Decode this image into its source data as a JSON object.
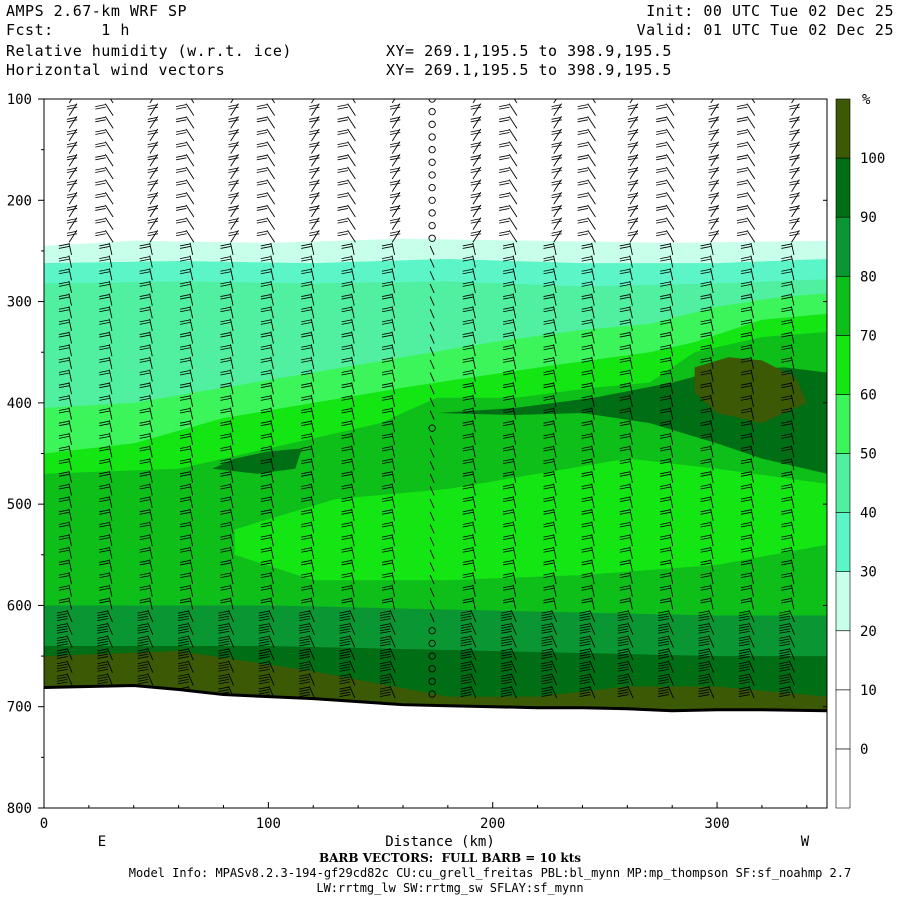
{
  "header": {
    "left_line1": "AMPS 2.67-km WRF SP",
    "left_line2": "Fcst:     1 h",
    "left_line3": "Relative humidity (w.r.t. ice)",
    "left_line4": "Horizontal wind vectors",
    "mid_line3": "XY= 269.1,195.5 to 398.9,195.5",
    "mid_line4": "XY= 269.1,195.5 to 398.9,195.5",
    "right_line1": "Init: 00 UTC Tue 02 Dec 25",
    "right_line2": "Valid: 01 UTC Tue 02 Dec 25"
  },
  "footer": {
    "barb_note": "BARB VECTORS:  FULL BARB = 10 kts",
    "model_info": "Model Info: MPASv8.2.3-194-gf29cd82c CU:cu_grell_freitas PBL:bl_mynn MP:mp_thompson SF:sf_noahmp 2.7",
    "model_info2": "LW:rrtmg_lw SW:rrtmg_sw SFLAY:sf_mynn"
  },
  "chart_data": {
    "type": "heatmap",
    "title": "Relative humidity (w.r.t. ice)",
    "xlabel": "Distance (km)",
    "ylabel": "",
    "x_ticks": [
      0,
      100,
      200,
      300
    ],
    "y_ticks": [
      100,
      200,
      300,
      400,
      500,
      600,
      700,
      800
    ],
    "xlim": [
      0,
      349
    ],
    "ylim": [
      100,
      800
    ],
    "x_end_labels": {
      "left": "E",
      "right": "W"
    },
    "colorbar": {
      "unit": "%",
      "levels": [
        0,
        10,
        20,
        30,
        40,
        50,
        60,
        70,
        80,
        90,
        100
      ],
      "colors": [
        "#ffffff",
        "#ffffff",
        "#ffffff",
        "#c8ffeb",
        "#5cf5c8",
        "#50f0a0",
        "#3cf55a",
        "#14e614",
        "#0fbf19",
        "#0a9632",
        "#006e14",
        "#3c5a05"
      ]
    },
    "terrain_surface_hPa": [
      [
        0,
        681
      ],
      [
        20,
        680
      ],
      [
        40,
        679
      ],
      [
        60,
        683
      ],
      [
        80,
        688
      ],
      [
        100,
        690
      ],
      [
        120,
        692
      ],
      [
        140,
        695
      ],
      [
        160,
        698
      ],
      [
        180,
        699
      ],
      [
        200,
        700
      ],
      [
        220,
        701
      ],
      [
        240,
        701
      ],
      [
        260,
        702
      ],
      [
        280,
        704
      ],
      [
        300,
        703
      ],
      [
        320,
        703
      ],
      [
        349,
        704
      ]
    ],
    "wind_columns_km": [
      12,
      30,
      48,
      66,
      84,
      102,
      120,
      138,
      156,
      173,
      192,
      210,
      228,
      245,
      262,
      280,
      298,
      316,
      334
    ],
    "calm_column_km": 173
  }
}
